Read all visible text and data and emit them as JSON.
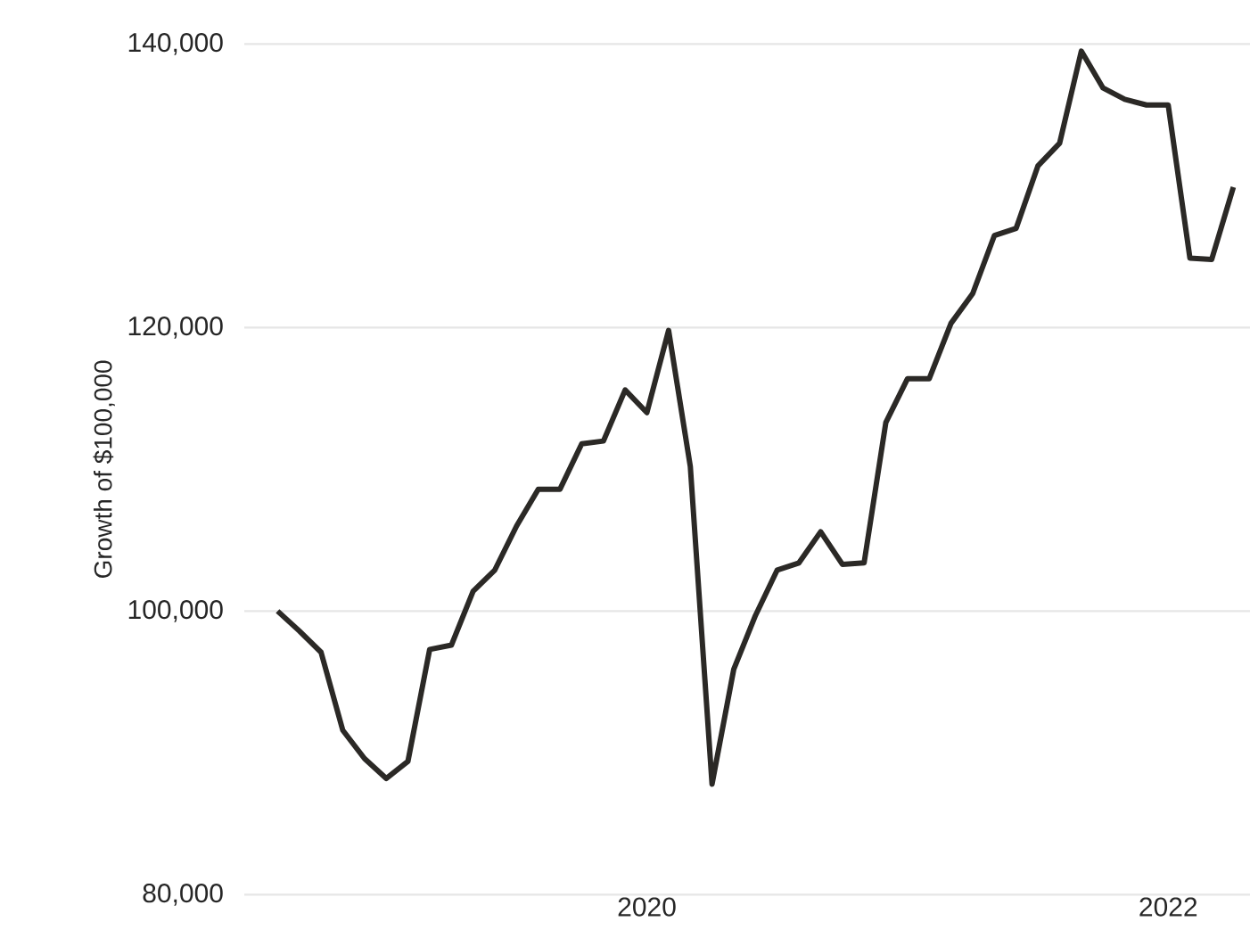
{
  "chart_data": {
    "type": "line",
    "ylabel": "Growth of $100,000",
    "color": "#2b2926",
    "grid": "y",
    "x": [
      "2018-08",
      "2018-09",
      "2018-10",
      "2018-11",
      "2018-12",
      "2019-01",
      "2019-02",
      "2019-03",
      "2019-04",
      "2019-05",
      "2019-06",
      "2019-07",
      "2019-08",
      "2019-09",
      "2019-10",
      "2019-11",
      "2019-12",
      "2020-01",
      "2020-02",
      "2020-03",
      "2020-04",
      "2020-05",
      "2020-06",
      "2020-07",
      "2020-08",
      "2020-09",
      "2020-10",
      "2020-11",
      "2020-12",
      "2021-01",
      "2021-02",
      "2021-03",
      "2021-04",
      "2021-05",
      "2021-06",
      "2021-07",
      "2021-08",
      "2021-09",
      "2021-10",
      "2021-11",
      "2021-12",
      "2022-01",
      "2022-02",
      "2022-03",
      "2022-04"
    ],
    "values": [
      100000,
      98600,
      97100,
      91600,
      89600,
      88200,
      89400,
      97300,
      97600,
      101400,
      102900,
      106000,
      108600,
      108600,
      111800,
      112000,
      115600,
      114000,
      119800,
      110200,
      87800,
      95900,
      99700,
      102900,
      103400,
      105600,
      103300,
      103400,
      113300,
      116400,
      116400,
      120300,
      122400,
      126500,
      127000,
      131400,
      133000,
      139500,
      136900,
      136100,
      135700,
      135700,
      124900,
      124800,
      129900
    ],
    "xlim": [
      "2018-06-15",
      "2022-04-24"
    ],
    "ylim": [
      80000,
      140000
    ],
    "xticks": [
      "2020",
      "2022"
    ],
    "yticks": [
      {
        "value": 80000,
        "label": "80,000"
      },
      {
        "value": 100000,
        "label": "100,000"
      },
      {
        "value": 120000,
        "label": "120,000"
      },
      {
        "value": 140000,
        "label": "140,000"
      }
    ]
  }
}
